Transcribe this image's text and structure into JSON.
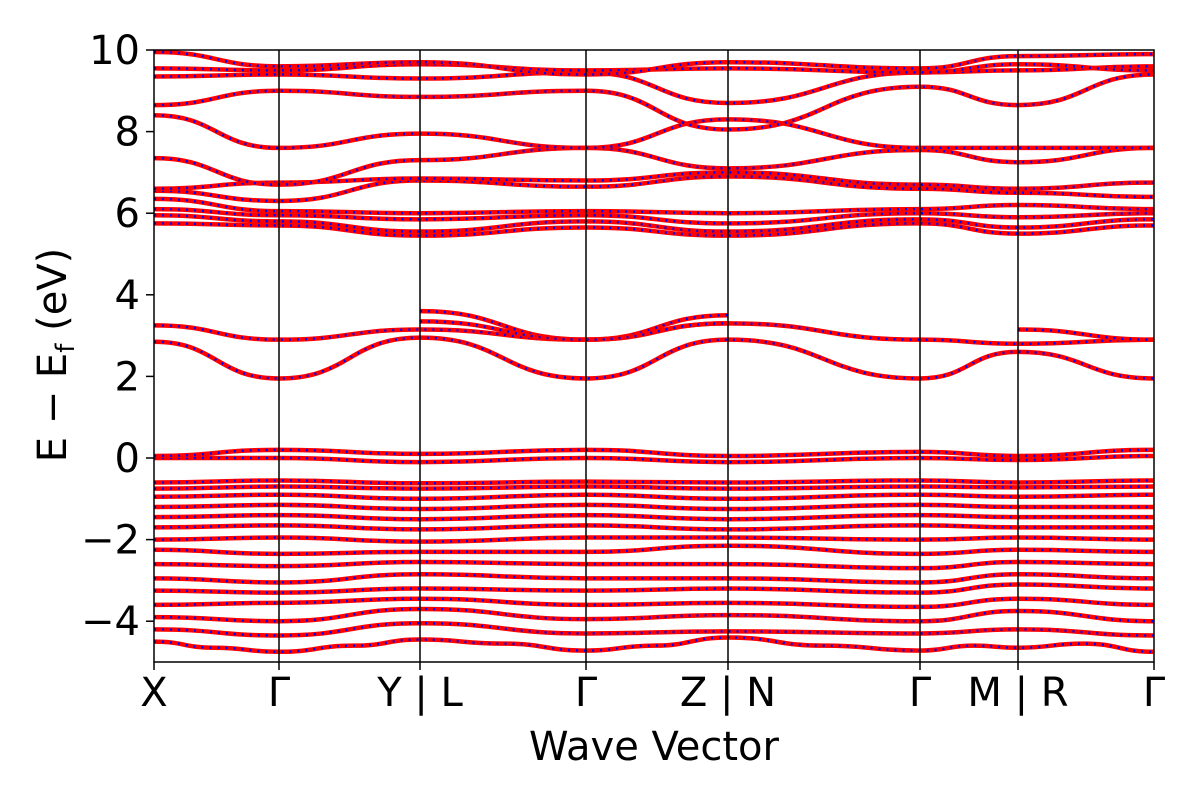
{
  "chart_data": {
    "type": "line",
    "title": "",
    "xlabel": "Wave Vector",
    "ylabel_parts": {
      "main": "E − E",
      "sub": "f",
      "unit": " (eV)"
    },
    "ylim": [
      -5,
      10
    ],
    "xlim": [
      0,
      1
    ],
    "y_ticks": [
      -4,
      -2,
      0,
      2,
      4,
      6,
      8,
      10
    ],
    "y_tick_labels": [
      "−4",
      "−2",
      "0",
      "2",
      "4",
      "6",
      "8",
      "10"
    ],
    "kpoints": [
      {
        "label": "X",
        "x": 0.0
      },
      {
        "label": "Γ",
        "x": 0.125
      },
      {
        "label": "Y | L",
        "x": 0.266
      },
      {
        "label": "Γ",
        "x": 0.432
      },
      {
        "label": "Z | N",
        "x": 0.574
      },
      {
        "label": "Γ",
        "x": 0.766
      },
      {
        "label": "M | R",
        "x": 0.864
      },
      {
        "label": "Γ",
        "x": 1.0
      }
    ],
    "grid": false,
    "legend": "none",
    "series_colors": {
      "primary": "#ff0000",
      "overlay": "#0000ff"
    },
    "bands": [
      [
        [
          0,
          -4.5
        ],
        [
          0.06,
          -4.65
        ],
        [
          0.125,
          -4.75
        ],
        [
          0.2,
          -4.6
        ],
        [
          0.266,
          -4.45
        ],
        [
          0.35,
          -4.55
        ],
        [
          0.432,
          -4.72
        ],
        [
          0.5,
          -4.6
        ],
        [
          0.574,
          -4.4
        ],
        [
          0.67,
          -4.6
        ],
        [
          0.766,
          -4.72
        ],
        [
          0.82,
          -4.6
        ],
        [
          0.864,
          -4.65
        ],
        [
          0.93,
          -4.55
        ],
        [
          1.0,
          -4.75
        ]
      ],
      [
        [
          0,
          -4.2
        ],
        [
          0.125,
          -4.35
        ],
        [
          0.266,
          -4.05
        ],
        [
          0.432,
          -4.3
        ],
        [
          0.574,
          -4.25
        ],
        [
          0.766,
          -4.3
        ],
        [
          0.864,
          -4.2
        ],
        [
          1.0,
          -4.35
        ]
      ],
      [
        [
          0,
          -3.9
        ],
        [
          0.125,
          -4.0
        ],
        [
          0.266,
          -3.7
        ],
        [
          0.432,
          -3.95
        ],
        [
          0.574,
          -3.85
        ],
        [
          0.766,
          -4.0
        ],
        [
          0.864,
          -3.75
        ],
        [
          1.0,
          -4.0
        ]
      ],
      [
        [
          0,
          -3.6
        ],
        [
          0.125,
          -3.55
        ],
        [
          0.266,
          -3.45
        ],
        [
          0.432,
          -3.6
        ],
        [
          0.574,
          -3.55
        ],
        [
          0.766,
          -3.65
        ],
        [
          0.864,
          -3.45
        ],
        [
          1.0,
          -3.6
        ]
      ],
      [
        [
          0,
          -3.25
        ],
        [
          0.125,
          -3.3
        ],
        [
          0.266,
          -3.2
        ],
        [
          0.432,
          -3.25
        ],
        [
          0.574,
          -3.2
        ],
        [
          0.766,
          -3.3
        ],
        [
          0.864,
          -3.1
        ],
        [
          1.0,
          -3.2
        ]
      ],
      [
        [
          0,
          -2.95
        ],
        [
          0.125,
          -3.05
        ],
        [
          0.266,
          -2.85
        ],
        [
          0.432,
          -2.95
        ],
        [
          0.574,
          -2.95
        ],
        [
          0.766,
          -3.05
        ],
        [
          0.864,
          -2.85
        ],
        [
          1.0,
          -2.95
        ]
      ],
      [
        [
          0,
          -2.6
        ],
        [
          0.125,
          -2.65
        ],
        [
          0.266,
          -2.55
        ],
        [
          0.432,
          -2.6
        ],
        [
          0.574,
          -2.6
        ],
        [
          0.766,
          -2.7
        ],
        [
          0.864,
          -2.55
        ],
        [
          1.0,
          -2.6
        ]
      ],
      [
        [
          0,
          -2.25
        ],
        [
          0.125,
          -2.35
        ],
        [
          0.266,
          -2.3
        ],
        [
          0.432,
          -2.3
        ],
        [
          0.574,
          -2.15
        ],
        [
          0.766,
          -2.35
        ],
        [
          0.864,
          -2.25
        ],
        [
          1.0,
          -2.3
        ]
      ],
      [
        [
          0,
          -2.0
        ],
        [
          0.125,
          -1.95
        ],
        [
          0.266,
          -2.05
        ],
        [
          0.432,
          -1.95
        ],
        [
          0.574,
          -1.95
        ],
        [
          0.766,
          -2.0
        ],
        [
          0.864,
          -1.95
        ],
        [
          1.0,
          -2.0
        ]
      ],
      [
        [
          0,
          -1.7
        ],
        [
          0.125,
          -1.65
        ],
        [
          0.266,
          -1.75
        ],
        [
          0.432,
          -1.65
        ],
        [
          0.574,
          -1.75
        ],
        [
          0.766,
          -1.65
        ],
        [
          0.864,
          -1.7
        ],
        [
          1.0,
          -1.7
        ]
      ],
      [
        [
          0,
          -1.45
        ],
        [
          0.125,
          -1.4
        ],
        [
          0.266,
          -1.5
        ],
        [
          0.432,
          -1.4
        ],
        [
          0.574,
          -1.5
        ],
        [
          0.766,
          -1.4
        ],
        [
          0.864,
          -1.45
        ],
        [
          1.0,
          -1.45
        ]
      ],
      [
        [
          0,
          -1.2
        ],
        [
          0.125,
          -1.15
        ],
        [
          0.266,
          -1.25
        ],
        [
          0.432,
          -1.15
        ],
        [
          0.574,
          -1.25
        ],
        [
          0.766,
          -1.15
        ],
        [
          0.864,
          -1.2
        ],
        [
          1.0,
          -1.2
        ]
      ],
      [
        [
          0,
          -0.95
        ],
        [
          0.125,
          -0.9
        ],
        [
          0.266,
          -1.0
        ],
        [
          0.432,
          -0.9
        ],
        [
          0.574,
          -1.0
        ],
        [
          0.766,
          -0.9
        ],
        [
          0.864,
          -0.95
        ],
        [
          1.0,
          -0.9
        ]
      ],
      [
        [
          0,
          -0.75
        ],
        [
          0.125,
          -0.7
        ],
        [
          0.266,
          -0.75
        ],
        [
          0.432,
          -0.7
        ],
        [
          0.574,
          -0.75
        ],
        [
          0.766,
          -0.7
        ],
        [
          0.864,
          -0.72
        ],
        [
          1.0,
          -0.7
        ]
      ],
      [
        [
          0,
          -0.6
        ],
        [
          0.125,
          -0.55
        ],
        [
          0.266,
          -0.62
        ],
        [
          0.432,
          -0.58
        ],
        [
          0.574,
          -0.6
        ],
        [
          0.766,
          -0.55
        ],
        [
          0.864,
          -0.6
        ],
        [
          1.0,
          -0.55
        ]
      ],
      [
        [
          0,
          0.0
        ],
        [
          0.125,
          0.0
        ],
        [
          0.266,
          -0.1
        ],
        [
          0.432,
          0.0
        ],
        [
          0.574,
          -0.1
        ],
        [
          0.766,
          0.0
        ],
        [
          0.864,
          -0.05
        ],
        [
          1.0,
          0.05
        ]
      ],
      [
        [
          0,
          0.05
        ],
        [
          0.125,
          0.2
        ],
        [
          0.266,
          0.1
        ],
        [
          0.432,
          0.2
        ],
        [
          0.574,
          0.05
        ],
        [
          0.766,
          0.15
        ],
        [
          0.864,
          0.05
        ],
        [
          1.0,
          0.2
        ]
      ],
      [
        [
          0,
          2.85
        ],
        [
          0.125,
          1.95
        ],
        [
          0.266,
          2.95
        ],
        [
          0.432,
          1.95
        ],
        [
          0.574,
          2.9
        ],
        [
          0.766,
          1.95
        ],
        [
          0.864,
          2.6
        ],
        [
          1.0,
          1.95
        ]
      ],
      [
        [
          0,
          3.25
        ],
        [
          0.125,
          2.9
        ],
        [
          0.266,
          3.15
        ],
        [
          0.432,
          2.9
        ],
        [
          0.574,
          3.3
        ],
        [
          0.766,
          2.9
        ],
        [
          0.864,
          2.8
        ],
        [
          1.0,
          2.9
        ]
      ],
      [
        [
          0.266,
          3.6
        ],
        [
          0.432,
          2.9
        ],
        [
          0.574,
          3.5
        ]
      ],
      [
        [
          0.266,
          3.35
        ],
        [
          0.432,
          2.9
        ],
        [
          0.574,
          3.3
        ]
      ],
      [
        [
          0.864,
          3.15
        ],
        [
          1.0,
          2.9
        ]
      ],
      [
        [
          0,
          5.75
        ],
        [
          0.125,
          5.7
        ],
        [
          0.266,
          5.45
        ],
        [
          0.432,
          5.65
        ],
        [
          0.574,
          5.45
        ],
        [
          0.766,
          5.75
        ],
        [
          0.864,
          5.5
        ],
        [
          1.0,
          5.7
        ]
      ],
      [
        [
          0,
          5.95
        ],
        [
          0.125,
          5.8
        ],
        [
          0.266,
          5.55
        ],
        [
          0.432,
          5.8
        ],
        [
          0.574,
          5.55
        ],
        [
          0.766,
          5.85
        ],
        [
          0.864,
          5.65
        ],
        [
          1.0,
          5.85
        ]
      ],
      [
        [
          0,
          6.1
        ],
        [
          0.125,
          5.95
        ],
        [
          0.266,
          5.85
        ],
        [
          0.432,
          5.95
        ],
        [
          0.574,
          5.75
        ],
        [
          0.766,
          6.0
        ],
        [
          0.864,
          5.9
        ],
        [
          1.0,
          6.0
        ]
      ],
      [
        [
          0,
          6.35
        ],
        [
          0.125,
          6.05
        ],
        [
          0.266,
          6.0
        ],
        [
          0.432,
          6.05
        ],
        [
          0.574,
          6.0
        ],
        [
          0.766,
          6.1
        ],
        [
          0.864,
          6.2
        ],
        [
          1.0,
          6.1
        ]
      ],
      [
        [
          0,
          6.55
        ],
        [
          0.125,
          6.3
        ],
        [
          0.266,
          6.8
        ],
        [
          0.432,
          6.65
        ],
        [
          0.574,
          6.9
        ],
        [
          0.766,
          6.6
        ],
        [
          0.864,
          6.5
        ],
        [
          1.0,
          6.4
        ]
      ],
      [
        [
          0,
          6.6
        ],
        [
          0.125,
          6.75
        ],
        [
          0.266,
          6.85
        ],
        [
          0.432,
          6.8
        ],
        [
          0.574,
          7.0
        ],
        [
          0.766,
          6.7
        ],
        [
          0.864,
          6.6
        ],
        [
          1.0,
          6.75
        ]
      ],
      [
        [
          0,
          7.35
        ],
        [
          0.125,
          6.7
        ],
        [
          0.266,
          7.3
        ],
        [
          0.432,
          7.6
        ],
        [
          0.574,
          7.1
        ],
        [
          0.766,
          7.55
        ],
        [
          0.864,
          7.25
        ],
        [
          1.0,
          7.6
        ]
      ],
      [
        [
          0,
          8.4
        ],
        [
          0.125,
          7.6
        ],
        [
          0.266,
          7.95
        ],
        [
          0.432,
          7.6
        ],
        [
          0.574,
          8.3
        ],
        [
          0.766,
          7.6
        ],
        [
          0.864,
          7.6
        ],
        [
          1.0,
          7.6
        ]
      ],
      [
        [
          0,
          8.65
        ],
        [
          0.125,
          9.0
        ],
        [
          0.266,
          8.85
        ],
        [
          0.432,
          9.0
        ],
        [
          0.574,
          8.05
        ],
        [
          0.766,
          9.1
        ],
        [
          0.864,
          8.65
        ],
        [
          1.0,
          9.4
        ]
      ],
      [
        [
          0,
          9.35
        ],
        [
          0.125,
          9.4
        ],
        [
          0.266,
          9.3
        ],
        [
          0.432,
          9.45
        ],
        [
          0.574,
          8.7
        ],
        [
          0.766,
          9.45
        ],
        [
          0.864,
          9.5
        ],
        [
          1.0,
          9.6
        ]
      ],
      [
        [
          0,
          9.55
        ],
        [
          0.125,
          9.5
        ],
        [
          0.266,
          9.65
        ],
        [
          0.432,
          9.5
        ],
        [
          0.574,
          9.55
        ],
        [
          0.766,
          9.45
        ],
        [
          0.864,
          9.65
        ],
        [
          1.0,
          9.5
        ]
      ],
      [
        [
          0,
          9.95
        ],
        [
          0.125,
          9.6
        ],
        [
          0.266,
          9.7
        ],
        [
          0.432,
          9.4
        ],
        [
          0.574,
          9.7
        ],
        [
          0.766,
          9.55
        ],
        [
          0.864,
          9.85
        ],
        [
          1.0,
          9.9
        ]
      ]
    ]
  }
}
